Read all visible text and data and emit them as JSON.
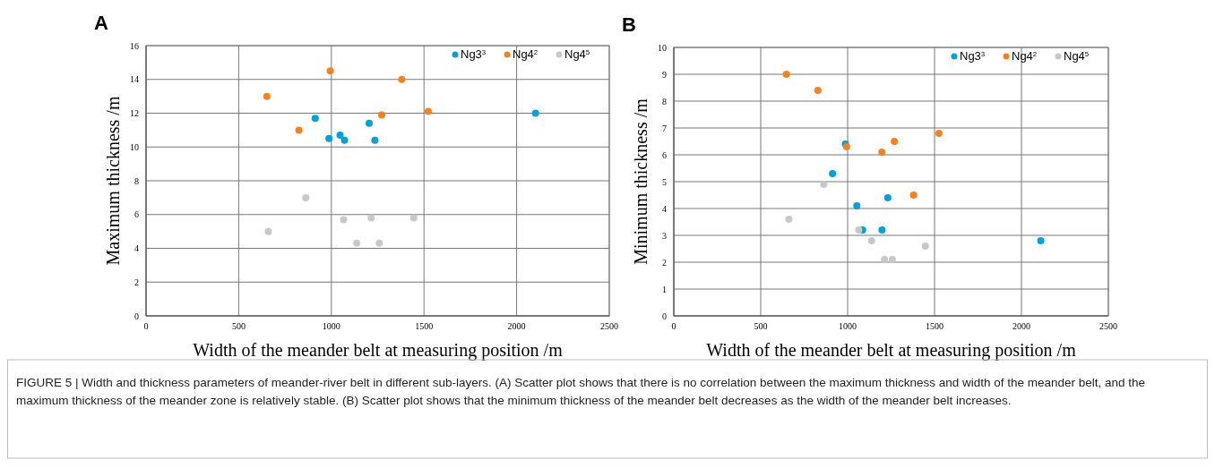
{
  "chart_data": [
    {
      "type": "scatter",
      "title": "A",
      "xlabel": "Width of the meander belt  at measuring position /m",
      "ylabel": "Maximum thickness /m",
      "xlim": [
        0,
        2500
      ],
      "xticks": [
        0,
        500,
        1000,
        1500,
        2000,
        2500
      ],
      "ylim": [
        0,
        16
      ],
      "yticks": [
        0,
        2,
        4,
        6,
        8,
        10,
        12,
        14,
        16
      ],
      "grid": true,
      "legend": "top right",
      "marker": "circle",
      "series": [
        {
          "name": "Ng3$^{3}$",
          "color": "#00a0d8",
          "x": [
            913,
            987,
            1047,
            1071,
            1204,
            1235,
            2102
          ],
          "values": [
            11.7,
            10.5,
            10.7,
            10.4,
            11.4,
            10.4,
            12.0
          ]
        },
        {
          "name": "Ng4$^{2}$",
          "color": "#f5821f",
          "x": [
            652,
            825,
            994,
            1272,
            1380,
            1523
          ],
          "values": [
            13.0,
            11.0,
            14.5,
            11.9,
            14.0,
            12.1
          ]
        },
        {
          "name": "Ng4$^{5}$",
          "color": "#c8c8c8",
          "x": [
            660,
            862,
            1066,
            1137,
            1215,
            1259,
            1445
          ],
          "values": [
            5.0,
            7.0,
            5.7,
            4.3,
            5.8,
            4.3,
            5.8
          ]
        }
      ],
      "annotations": [
        "FIGURE 5 | Width and thickness parameters of meander-river belt in different sub-layers. (A) Scatter plot shows that there is no correlation between the maximum thickness and width of the meander belt, and the maximum thickness of the meander zone is relatively stable. (B) Scatter plot shows that the minimum thickness of the meander belt decreases as the width of the meander belt increases."
      ]
    },
    {
      "type": "scatter",
      "title": "B",
      "xlabel": "Width of the meander belt  at measuring position /m",
      "ylabel": "Minimum thickness  /m",
      "xlim": [
        0,
        2500
      ],
      "xticks": [
        0,
        500,
        1000,
        1500,
        2000,
        2500
      ],
      "ylim": [
        0,
        10
      ],
      "yticks": [
        0,
        1,
        2,
        3,
        4,
        5,
        6,
        7,
        8,
        9,
        10
      ],
      "grid": true,
      "legend": "top right",
      "marker": "circle",
      "series": [
        {
          "name": "Ng3$^{3}$",
          "color": "#00a0d8",
          "x": [
            913,
            987,
            1053,
            1086,
            1198,
            1231,
            2111
          ],
          "values": [
            5.3,
            6.4,
            4.1,
            3.2,
            3.2,
            4.4,
            2.8
          ]
        },
        {
          "name": "Ng4$^{2}$",
          "color": "#f5821f",
          "x": [
            648,
            829,
            994,
            1197,
            1269,
            1379,
            1525
          ],
          "values": [
            9.0,
            8.4,
            6.3,
            6.1,
            6.5,
            4.5,
            6.8
          ]
        },
        {
          "name": "Ng4$^{5}$",
          "color": "#c8c8c8",
          "x": [
            662,
            863,
            1064,
            1138,
            1212,
            1257,
            1447
          ],
          "values": [
            3.6,
            4.9,
            3.2,
            2.8,
            2.1,
            2.1,
            2.6
          ]
        }
      ]
    }
  ]
}
